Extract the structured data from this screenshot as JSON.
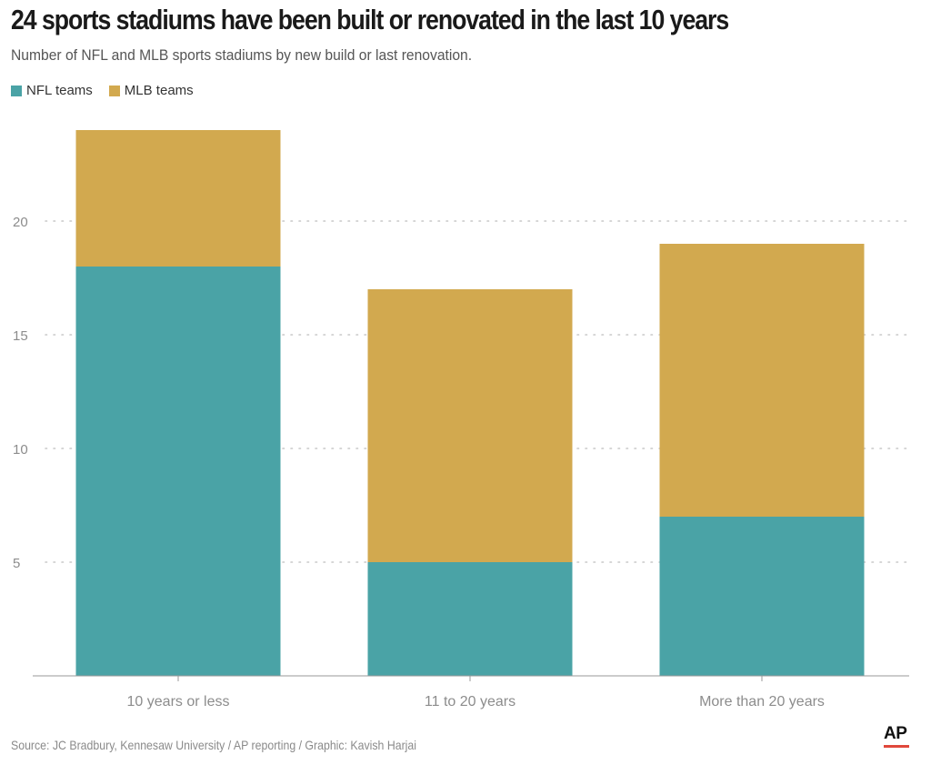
{
  "header": {
    "title": "24 sports stadiums have been built or renovated in the last 10 years",
    "subtitle": "Number of NFL and MLB sports stadiums by new build or last renovation."
  },
  "footer": {
    "source": "Source: JC Bradbury, Kennesaw University / AP reporting / Graphic: Kavish Harjai",
    "logo": "AP"
  },
  "colors": {
    "nfl": "#4aa3a6",
    "mlb": "#d2a94f",
    "grid": "#c8c8c8",
    "tick": "#8c8c8c"
  },
  "chart_data": {
    "type": "bar",
    "stacked": true,
    "title": "24 sports stadiums have been built or renovated in the last 10 years",
    "subtitle": "Number of NFL and MLB sports stadiums by new build or last renovation.",
    "categories": [
      "10 years or less",
      "11 to 20 years",
      "More than 20 years"
    ],
    "series": [
      {
        "name": "NFL teams",
        "values": [
          18,
          5,
          7
        ],
        "color": "#4aa3a6"
      },
      {
        "name": "MLB teams",
        "values": [
          6,
          12,
          12
        ],
        "color": "#d2a94f"
      }
    ],
    "yticks": [
      5,
      10,
      15,
      20
    ],
    "ylim": [
      0,
      24
    ],
    "grid": true,
    "legend": "top-left",
    "xlabel": "",
    "ylabel": ""
  }
}
